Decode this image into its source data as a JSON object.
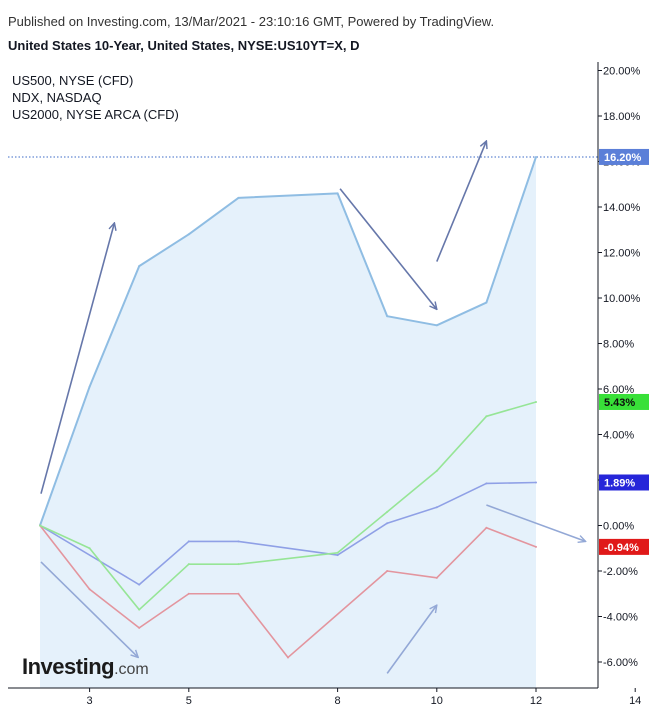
{
  "header": {
    "published": "Published on Investing.com, 13/Mar/2021 - 23:10:16 GMT, Powered by TradingView.",
    "title": "United States 10-Year, United States, NYSE:US10YT=X, D"
  },
  "logo": {
    "main": "Investing",
    "suffix": ".com"
  },
  "chart_data": {
    "type": "line",
    "title": "United States 10-Year, United States, NYSE:US10YT=X, D",
    "x_ticks": [
      3,
      5,
      8,
      10,
      12,
      14
    ],
    "x_domain": [
      2,
      14
    ],
    "y_domain": [
      -7.3,
      20.6
    ],
    "y_ticks": [
      {
        "v": 20,
        "label": "20.00%"
      },
      {
        "v": 18,
        "label": "18.00%"
      },
      {
        "v": 16,
        "label": "16.00%"
      },
      {
        "v": 14,
        "label": "14.00%"
      },
      {
        "v": 12,
        "label": "12.00%"
      },
      {
        "v": 10,
        "label": "10.00%"
      },
      {
        "v": 8,
        "label": "8.00%"
      },
      {
        "v": 6,
        "label": "6.00%"
      },
      {
        "v": 4,
        "label": "4.00%"
      },
      {
        "v": 2,
        "label": "2.00%"
      },
      {
        "v": 0,
        "label": "0.00%"
      },
      {
        "v": -2,
        "label": "-2.00%"
      },
      {
        "v": -4,
        "label": "-4.00%"
      },
      {
        "v": -6,
        "label": "-6.00%"
      }
    ],
    "series": [
      {
        "key": "us10y",
        "color": "#8fbde3",
        "fill": true,
        "x": [
          2,
          3,
          4,
          5,
          6,
          8,
          9,
          10,
          11,
          12
        ],
        "y": [
          0,
          6.1,
          11.4,
          12.8,
          14.4,
          14.6,
          9.2,
          8.8,
          9.8,
          16.2
        ],
        "last_label": "16.20%",
        "badge_color": "#5b7fd8",
        "dotted": true
      },
      {
        "name": "US500, NYSE (CFD)",
        "key": "us500",
        "color": "#8fa0e6",
        "x": [
          2,
          4,
          5,
          6,
          8,
          9,
          10,
          11,
          12
        ],
        "y": [
          0,
          -2.6,
          -0.7,
          -0.7,
          -1.3,
          0.1,
          0.8,
          1.85,
          1.89
        ],
        "last_label": "1.89%",
        "badge_color": "#2626d9"
      },
      {
        "name": "NDX, NASDAQ",
        "key": "ndx",
        "color": "#e3959e",
        "x": [
          2,
          3,
          4,
          5,
          6,
          7,
          9,
          10,
          11,
          12
        ],
        "y": [
          0,
          -2.8,
          -4.5,
          -3.0,
          -3.0,
          -5.8,
          -2.0,
          -2.3,
          -0.1,
          -0.94
        ],
        "last_label": "-0.94%",
        "badge_color": "#e01919"
      },
      {
        "name": "US2000, NYSE ARCA (CFD)",
        "key": "us2000",
        "color": "#96e596",
        "x": [
          2,
          3,
          4,
          5,
          6,
          8,
          9,
          10,
          11,
          12
        ],
        "y": [
          0,
          -1.0,
          -3.7,
          -1.7,
          -1.7,
          -1.2,
          0.6,
          2.4,
          4.8,
          5.43
        ],
        "last_label": "5.43%",
        "badge_color": "#38e038"
      }
    ],
    "annotation_arrows": [
      {
        "from": [
          2.02,
          1.4
        ],
        "to": [
          3.5,
          13.3
        ],
        "color": "#6677aa"
      },
      {
        "from": [
          8.05,
          14.8
        ],
        "to": [
          10.0,
          9.5
        ],
        "color": "#6677aa"
      },
      {
        "from": [
          10.0,
          11.6
        ],
        "to": [
          11.0,
          16.9
        ],
        "color": "#6677aa"
      },
      {
        "from": [
          2.02,
          -1.6
        ],
        "to": [
          3.98,
          -5.8
        ],
        "color": "#93a8d6"
      },
      {
        "from": [
          9.0,
          -6.5
        ],
        "to": [
          10.0,
          -3.5
        ],
        "color": "#93a8d6"
      },
      {
        "from": [
          11.0,
          0.9
        ],
        "to": [
          13.0,
          -0.7
        ],
        "color": "#93a8d6"
      }
    ]
  }
}
